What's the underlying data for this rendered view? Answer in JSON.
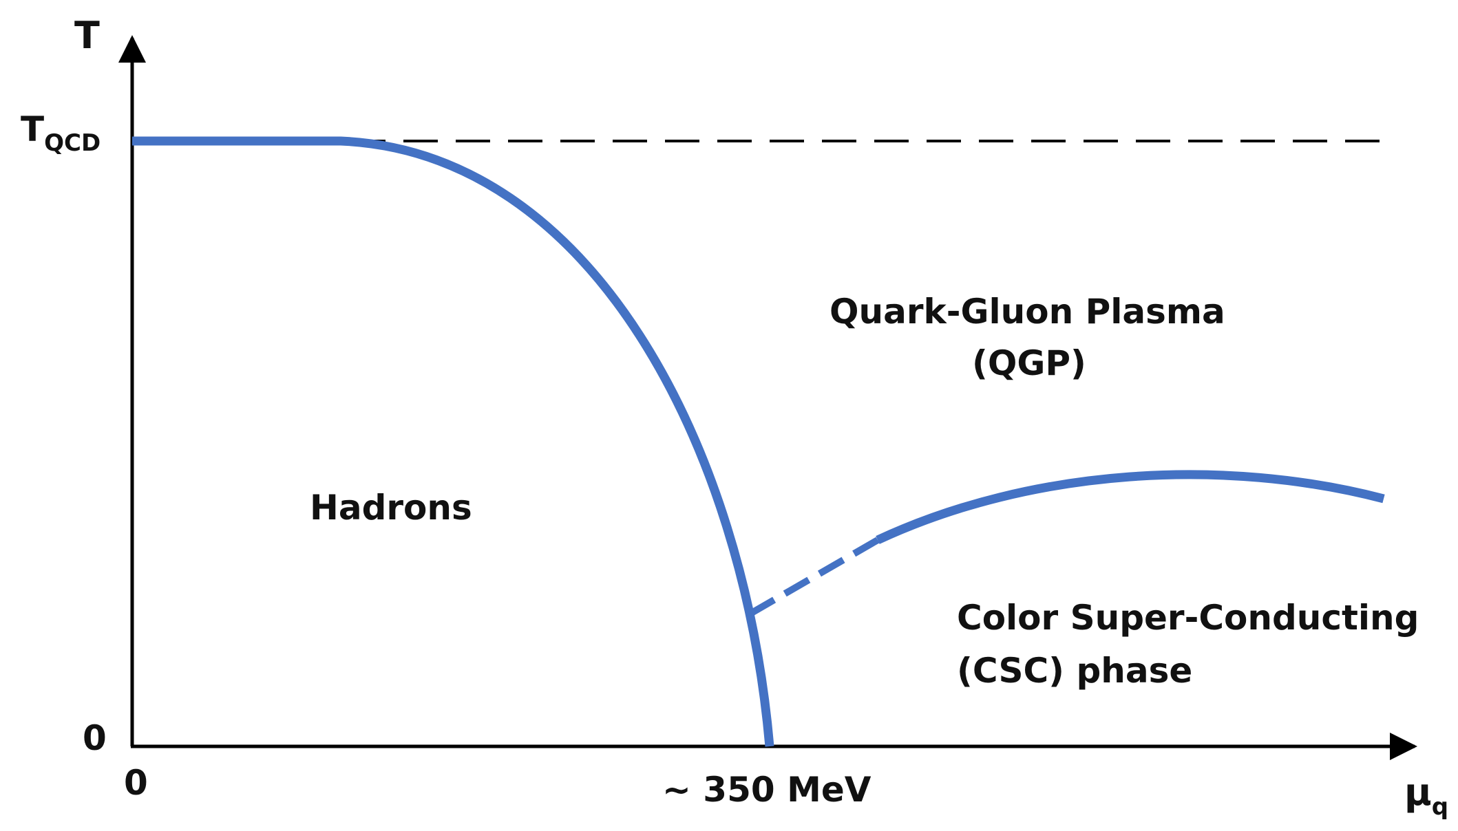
{
  "diagram": {
    "y_axis": {
      "label": "T"
    },
    "x_axis": {
      "label_main": "μ",
      "label_sub": "q"
    },
    "ticks": {
      "t_qcd_main": "T",
      "t_qcd_sub": "QCD",
      "y_zero": "0",
      "x_zero": "0",
      "x_mid": "~ 350 MeV"
    },
    "regions": {
      "qgp_line1": "Quark-Gluon Plasma",
      "qgp_line2": "(QGP)",
      "hadrons": "Hadrons",
      "csc_line1": "Color Super-Conducting",
      "csc_line2": "(CSC) phase"
    },
    "colors": {
      "phase_boundary": "#4472c4",
      "axes": "#000000",
      "dashed_reference": "#000000"
    }
  }
}
